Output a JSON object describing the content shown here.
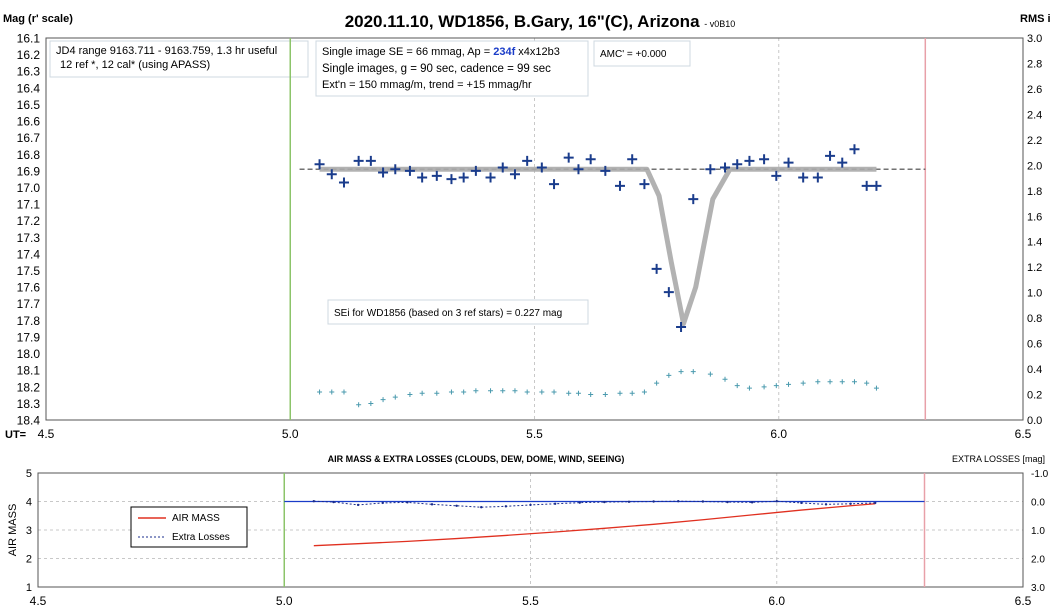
{
  "chart_data": [
    {
      "type": "scatter",
      "title": "2020.11.10, WD1856, B.Gary, 16\"(C), Arizona",
      "title_suffix": "- v0B10",
      "ylabel": "Mag (r' scale)",
      "y2label": "RMS i",
      "xlabel": "UT=",
      "xlim": [
        4.5,
        6.5
      ],
      "ylim": [
        18.4,
        16.1
      ],
      "y2lim": [
        0.0,
        3.0
      ],
      "x_ticks": [
        "4.5",
        "5.0",
        "5.5",
        "6.0",
        "6.5"
      ],
      "y_ticks": [
        "16.1",
        "16.2",
        "16.3",
        "16.4",
        "16.5",
        "16.6",
        "16.7",
        "16.8",
        "16.9",
        "17.0",
        "17.1",
        "17.2",
        "17.3",
        "17.4",
        "17.5",
        "17.6",
        "17.7",
        "17.8",
        "17.9",
        "18.0",
        "18.1",
        "18.2",
        "18.3",
        "18.4"
      ],
      "y2_ticks": [
        "3.0",
        "2.8",
        "2.6",
        "2.4",
        "2.2",
        "2.0",
        "1.8",
        "1.6",
        "1.4",
        "1.2",
        "1.0",
        "0.8",
        "0.6",
        "0.4",
        "0.2",
        "0.0"
      ],
      "grid": true,
      "vlines": [
        {
          "x": 5.0,
          "color": "#8cc46a"
        },
        {
          "x": 6.3,
          "color": "#e8a0a8"
        }
      ],
      "reference_level": 16.89,
      "annotations": {
        "jd_range": "JD4 range 9163.711 - 9163.759, 1.3 hr useful",
        "ref_stars": "12 ref *, 12 cal* (using APASS)",
        "se_prefix": "Single image SE = 66 mmag, Ap = ",
        "ap_value": "234f",
        "ap_suffix": " x4x12b3",
        "exposure": "Single images, g = 90 sec, cadence = 99 sec",
        "extinction": "Ext'n = 150 mmag/m, trend = +15 mmag/hr",
        "amc": "AMC' = +0.000",
        "sei": "SEi for WD1856 (based on 3 ref stars) = 0.227 mag"
      },
      "series": [
        {
          "name": "",
          "color": "#1a3c8c",
          "marker": "plus",
          "x": [
            5.06,
            5.085,
            5.11,
            5.14,
            5.165,
            5.19,
            5.215,
            5.245,
            5.27,
            5.3,
            5.33,
            5.355,
            5.38,
            5.41,
            5.435,
            5.46,
            5.485,
            5.515,
            5.54,
            5.57,
            5.59,
            5.615,
            5.645,
            5.675,
            5.7,
            5.725,
            5.75,
            5.775,
            5.8,
            5.825,
            5.86,
            5.89,
            5.915,
            5.94,
            5.97,
            5.995,
            6.02,
            6.05,
            6.08,
            6.105,
            6.13,
            6.155,
            6.18,
            6.2
          ],
          "y": [
            16.86,
            16.92,
            16.97,
            16.84,
            16.84,
            16.91,
            16.89,
            16.9,
            16.94,
            16.93,
            16.95,
            16.94,
            16.9,
            16.94,
            16.88,
            16.92,
            16.84,
            16.88,
            16.98,
            16.82,
            16.89,
            16.83,
            16.9,
            16.99,
            16.83,
            16.98,
            17.49,
            17.63,
            17.84,
            17.07,
            16.89,
            16.88,
            16.86,
            16.84,
            16.83,
            16.93,
            16.85,
            16.94,
            16.94,
            16.81,
            16.85,
            16.77,
            16.99,
            16.99
          ]
        },
        {
          "name": "",
          "color": "#aaaaaa",
          "marker": "line",
          "x": [
            5.06,
            5.73,
            5.755,
            5.78,
            5.805,
            5.83,
            5.865,
            5.9,
            6.2
          ],
          "y": [
            16.89,
            16.89,
            17.05,
            17.45,
            17.82,
            17.6,
            17.07,
            16.89,
            16.89
          ]
        },
        {
          "name": "RMS",
          "color": "#4a9aae",
          "marker": "small-plus",
          "axis": "y2",
          "x": [
            5.06,
            5.085,
            5.11,
            5.14,
            5.165,
            5.19,
            5.215,
            5.245,
            5.27,
            5.3,
            5.33,
            5.355,
            5.38,
            5.41,
            5.435,
            5.46,
            5.485,
            5.515,
            5.54,
            5.57,
            5.59,
            5.615,
            5.645,
            5.675,
            5.7,
            5.725,
            5.75,
            5.775,
            5.8,
            5.825,
            5.86,
            5.89,
            5.915,
            5.94,
            5.97,
            5.995,
            6.02,
            6.05,
            6.08,
            6.105,
            6.13,
            6.155,
            6.18,
            6.2
          ],
          "y": [
            0.22,
            0.22,
            0.22,
            0.12,
            0.13,
            0.16,
            0.18,
            0.2,
            0.21,
            0.21,
            0.22,
            0.22,
            0.23,
            0.23,
            0.23,
            0.23,
            0.22,
            0.22,
            0.22,
            0.21,
            0.21,
            0.2,
            0.2,
            0.21,
            0.21,
            0.22,
            0.29,
            0.35,
            0.38,
            0.38,
            0.36,
            0.32,
            0.27,
            0.25,
            0.26,
            0.27,
            0.28,
            0.29,
            0.3,
            0.3,
            0.3,
            0.3,
            0.29,
            0.25
          ]
        }
      ]
    },
    {
      "type": "line",
      "title": "AIR MASS & EXTRA LOSSES (CLOUDS, DEW, DOME, WIND, SEEING)",
      "ylabel": "AIR MASS",
      "y2label": "EXTRA LOSSES [mag]",
      "xlim": [
        4.5,
        6.5
      ],
      "ylim": [
        1,
        5
      ],
      "y2lim": [
        3.0,
        -1.0
      ],
      "x_ticks": [
        "4.5",
        "5.0",
        "5.5",
        "6.0",
        "6.5"
      ],
      "y_ticks": [
        "5",
        "4",
        "3",
        "2",
        "1"
      ],
      "y2_ticks": [
        "-1.0",
        "0.0",
        "1.0",
        "2.0",
        "3.0"
      ],
      "grid": true,
      "legend": {
        "placement": "left",
        "entries": [
          "AIR MASS",
          "Extra Losses"
        ]
      },
      "vlines": [
        {
          "x": 5.0,
          "color": "#8cc46a"
        },
        {
          "x": 6.3,
          "color": "#e8a0a8"
        }
      ],
      "hline": {
        "y": 4.0,
        "color": "#1a3cc8"
      },
      "series": [
        {
          "name": "AIR MASS",
          "color": "#e03020",
          "x": [
            5.06,
            5.15,
            5.25,
            5.35,
            5.45,
            5.55,
            5.65,
            5.75,
            5.85,
            5.95,
            6.05,
            6.15,
            6.2
          ],
          "y": [
            2.45,
            2.52,
            2.6,
            2.7,
            2.81,
            2.93,
            3.06,
            3.2,
            3.36,
            3.53,
            3.7,
            3.85,
            3.92
          ]
        },
        {
          "name": "Extra Losses",
          "color": "#1a2c8c",
          "axis": "y2",
          "x": [
            5.06,
            5.1,
            5.15,
            5.2,
            5.25,
            5.3,
            5.35,
            5.4,
            5.45,
            5.5,
            5.55,
            5.6,
            5.65,
            5.7,
            5.75,
            5.8,
            5.85,
            5.9,
            5.95,
            6.0,
            6.05,
            6.1,
            6.15,
            6.2
          ],
          "y": [
            -0.01,
            0.02,
            0.12,
            0.05,
            0.03,
            0.1,
            0.15,
            0.2,
            0.17,
            0.12,
            0.08,
            0.04,
            0.02,
            0.01,
            0.0,
            -0.01,
            0.0,
            0.02,
            0.03,
            -0.01,
            0.05,
            0.1,
            0.08,
            0.05
          ]
        }
      ]
    }
  ]
}
